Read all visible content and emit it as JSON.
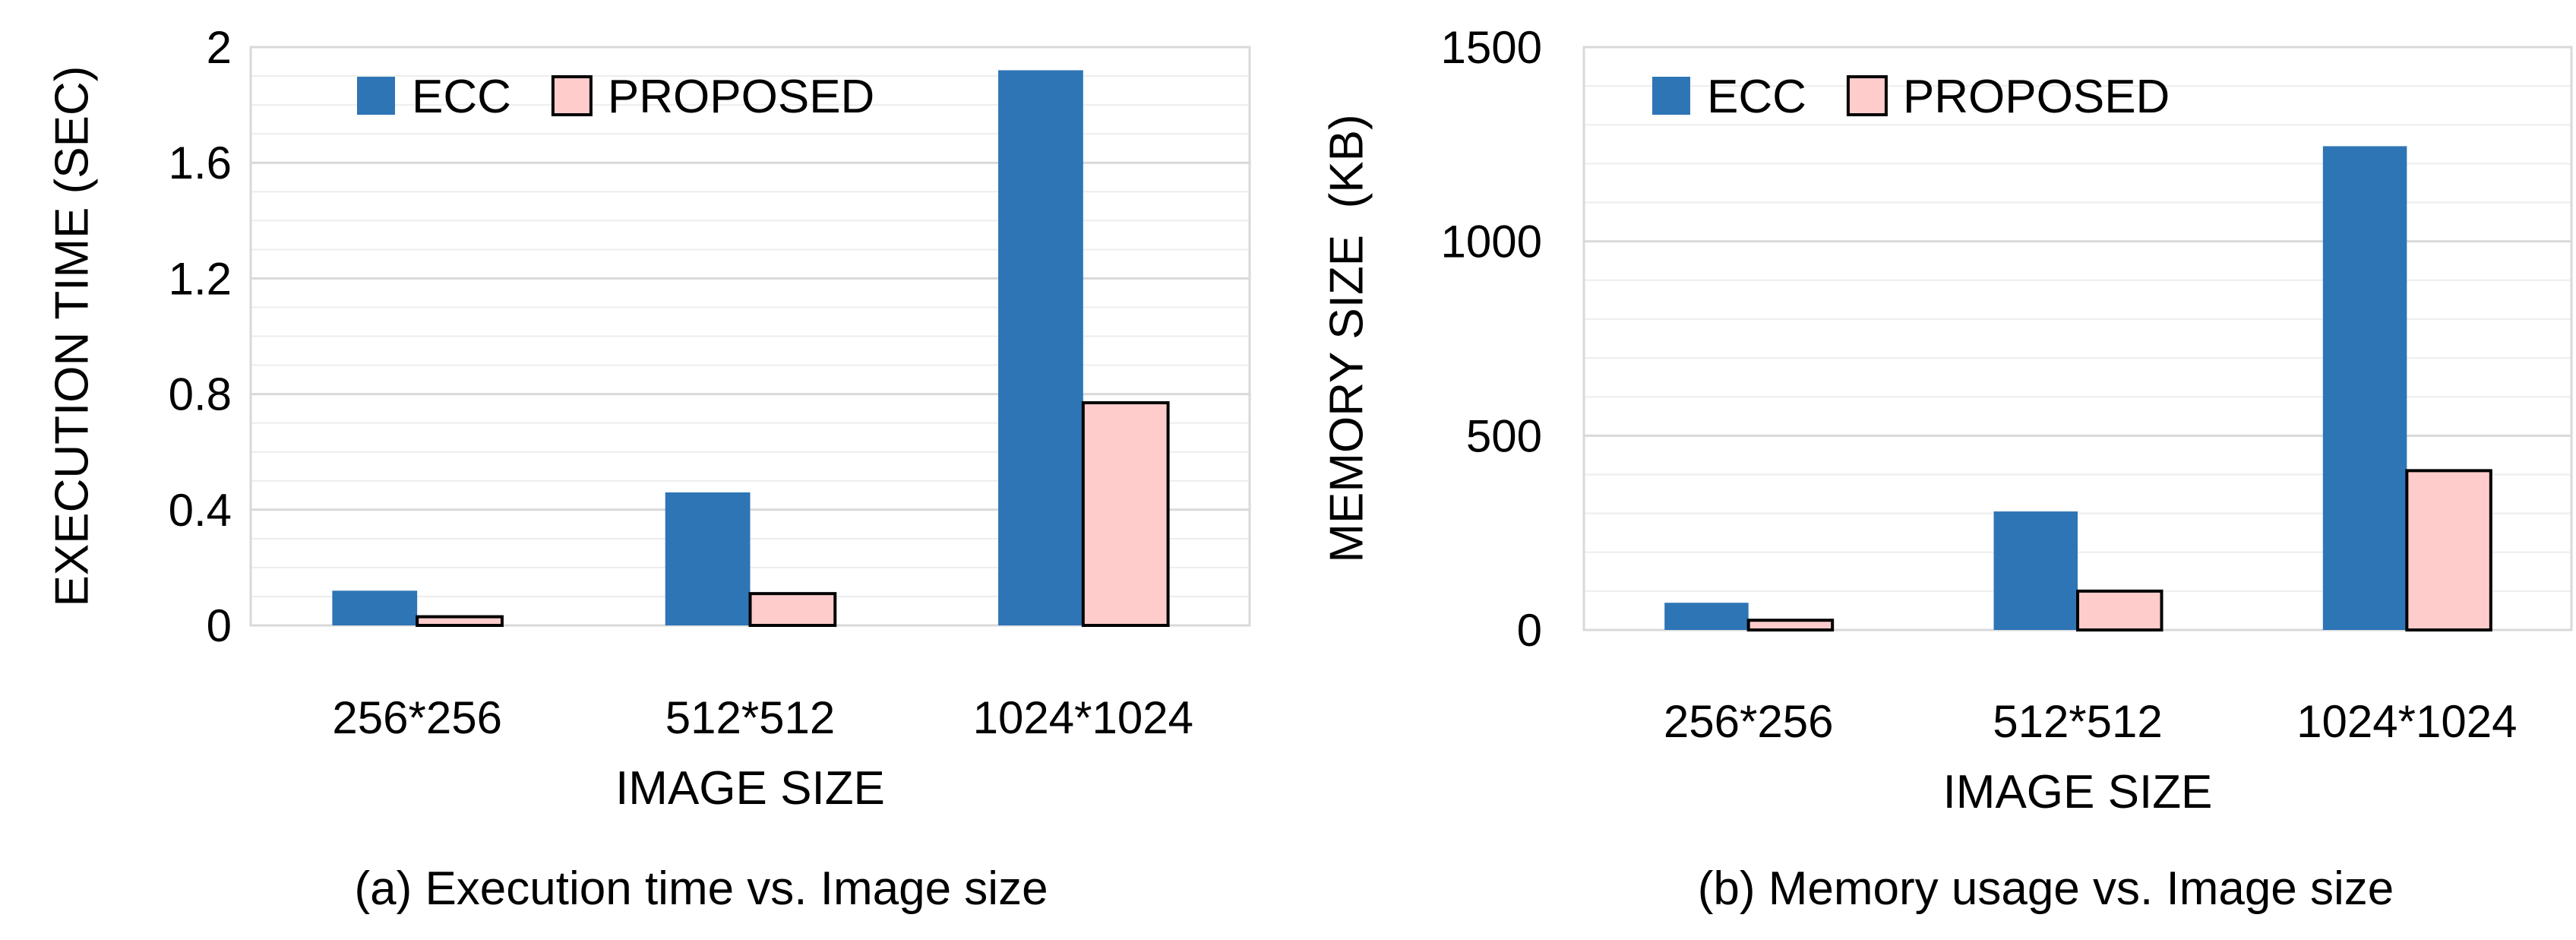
{
  "chart_data": [
    {
      "type": "bar",
      "title": "",
      "xlabel": "IMAGE SIZE",
      "ylabel": "EXECUTION TIME (SEC)",
      "caption": "(a) Execution time vs. Image size",
      "categories": [
        "256*256",
        "512*512",
        "1024*1024"
      ],
      "series": [
        {
          "name": "ECC",
          "values": [
            0.12,
            0.46,
            1.92
          ],
          "color": "#2e75b6"
        },
        {
          "name": "PROPOSED",
          "values": [
            0.03,
            0.11,
            0.77
          ],
          "color": "#ffcccc"
        }
      ],
      "ylim": [
        0,
        2
      ],
      "yticks": [
        "0",
        "0.4",
        "0.8",
        "1.2",
        "1.6",
        "2"
      ],
      "ytick_values": [
        0,
        0.4,
        0.8,
        1.2,
        1.6,
        2
      ],
      "minor_step": 0.1,
      "grid": true,
      "legend_placement": "top"
    },
    {
      "type": "bar",
      "title": "",
      "xlabel": "IMAGE SIZE",
      "ylabel": "MEMORY SIZE  (KB)",
      "caption": "(b) Memory usage vs. Image size",
      "categories": [
        "256*256",
        "512*512",
        "1024*1024"
      ],
      "series": [
        {
          "name": "ECC",
          "values": [
            70,
            305,
            1245
          ],
          "color": "#2e75b6"
        },
        {
          "name": "PROPOSED",
          "values": [
            25,
            100,
            410
          ],
          "color": "#ffcccc"
        }
      ],
      "ylim": [
        0,
        1500
      ],
      "yticks": [
        "0",
        "500",
        "1000",
        "1500"
      ],
      "ytick_values": [
        0,
        500,
        1000,
        1500
      ],
      "minor_step": 100,
      "grid": true,
      "legend_placement": "top"
    }
  ]
}
